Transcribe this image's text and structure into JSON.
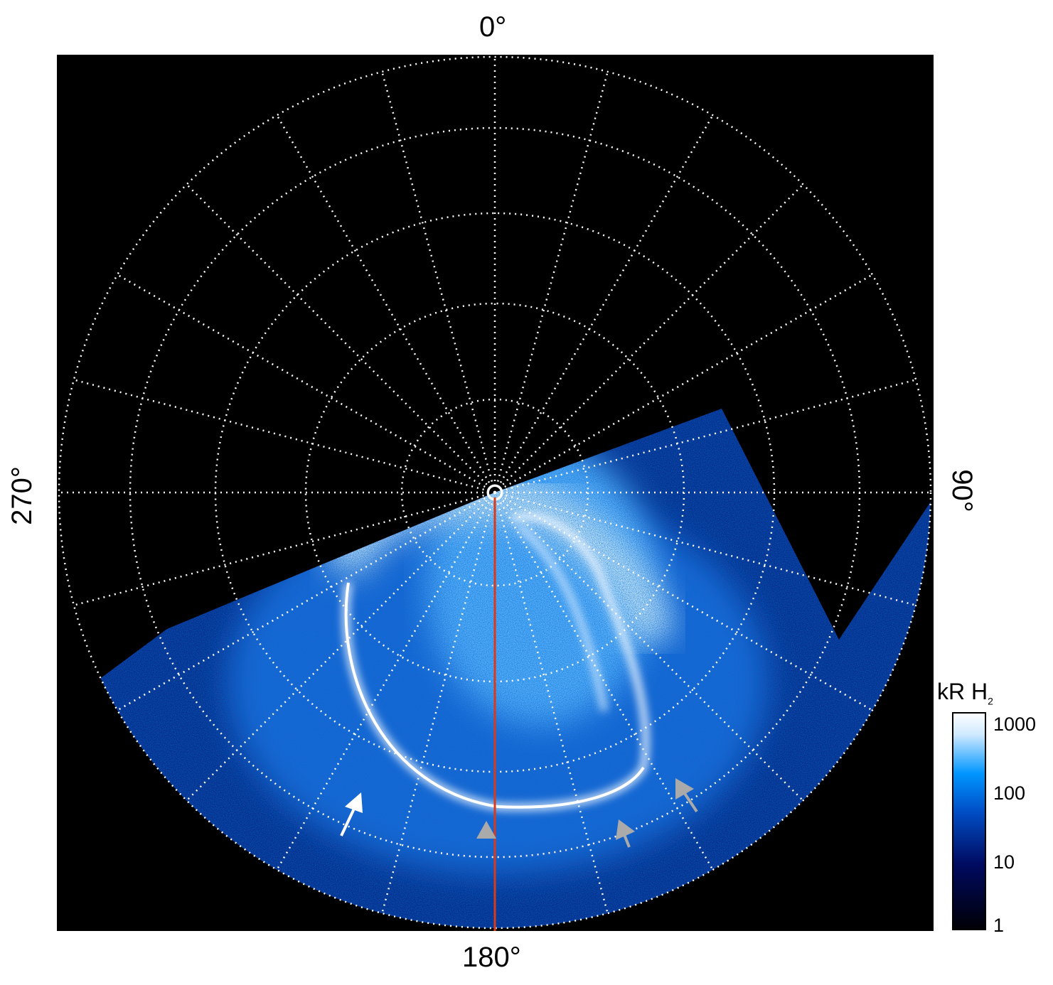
{
  "chart_data": {
    "type": "heatmap",
    "projection": "polar",
    "longitude_labels": {
      "top": "0°",
      "right": "90°",
      "bottom": "180°",
      "left": "270°"
    },
    "colorbar": {
      "label": "kR H",
      "label_subscript": "2",
      "scale": "log",
      "ticks": [
        "1",
        "10",
        "100",
        "1000"
      ],
      "range": [
        1,
        1400
      ],
      "colors": [
        "#000005",
        "#000a60",
        "#0050c8",
        "#0096ff",
        "#cfe9ff",
        "#ffffff"
      ]
    },
    "grid": true,
    "reference_line_color": "#d83a1a",
    "arrows": [
      {
        "color": "#ffffff"
      },
      {
        "color": "#aaaaaa"
      },
      {
        "color": "#aaaaaa"
      },
      {
        "color": "#aaaaaa"
      }
    ]
  }
}
